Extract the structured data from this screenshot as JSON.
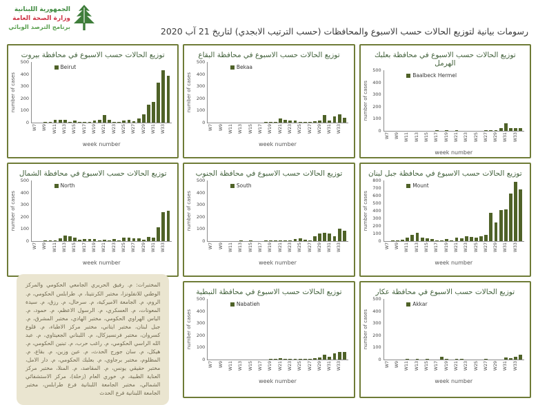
{
  "header": {
    "org_line1": "الجمهورية اللبنانية",
    "org_line2": "وزارة الصحة العامة",
    "org_line3": "برنامج الترصد الوبائي",
    "title": "رسومات بيانية لتوزيع الحالات حسب الاسبوع  والمحافظات (حسب الترتيب الابجدي) لتاريخ  21 آب  2020"
  },
  "colors": {
    "bar": "#4f6228",
    "panel_border": "#6e7b36",
    "chart_title_text": "#41603a",
    "org_green": "#3f8a3f",
    "org_red": "#cf3345",
    "labs_box_bg": "#eae5d0"
  },
  "labs_note": "المختبرات: م. رفيق الحريري الجامعي الحكومي والمركز الوطني للانفلونزا، مختبر الكرنتينا، م. طرابلس الحكومي، م. الروم، م. الجامعة الاميركية، م. سرحال، م. رزق، م. سيدة المعونات، م. العسكري، م. الرسول الاعظم، م. حمود، م. الياس الهراوي الحكومي، مختبر الهادي، مختبر المشرق، م. جبل لبنان، مختبر ايتاني، مختبر مركز الاطباء، م. قلوع كسروان، مختبر فرنسيزكال، م. اللبناني الجعيتاوي، م. عبد الله الراسي الحكومي، م. راغب حرب، م. تبنين الحكومي، م. هيكل، م. سان جورج الحدث، م. عين وزين، م. بقاع، م. المظلوم، مختبر برجاوي، م. بعلبك الحكومي، م. دار الامل، مختبر حقيقي يونس، م. المقاصد، م. المنلا، مختبر مركز العناية الطبية، م. خوري العام (زحلة)، مركز الاستشفائي الشمالي، مختبر الجامعة اللبنانية فرع طرابلس، مختبر الجامعة اللبنانية فرع الحدث",
  "chart_data": {
    "type": "bar",
    "shared": {
      "categories": [
        "W7",
        "W8",
        "W9",
        "W10",
        "W11",
        "W12",
        "W13",
        "W14",
        "W15",
        "W16",
        "W17",
        "W18",
        "W19",
        "W20",
        "W21",
        "W22",
        "W23",
        "W24",
        "W25",
        "W26",
        "W27",
        "W28",
        "W29",
        "W30",
        "W31",
        "W32",
        "W33",
        "W34"
      ],
      "xtick_every": 2,
      "xlabel": "week number",
      "ylabel": "number of cases",
      "bar_color": "#4f6228",
      "grid": false,
      "legend_position": "top-left-inside"
    },
    "charts": [
      {
        "title": "توزيع الحالات حسب الاسبوع  في محافظة بيروت",
        "legend": "Beirut",
        "ylim": [
          0,
          500
        ],
        "ytick_step": 100,
        "values": [
          0,
          0,
          2,
          8,
          25,
          25,
          25,
          5,
          15,
          3,
          2,
          3,
          15,
          25,
          65,
          20,
          3,
          5,
          15,
          20,
          10,
          35,
          70,
          150,
          170,
          330,
          430,
          385
        ]
      },
      {
        "title": "توزيع الحالات حسب الاسبوع  في محافظة البقاع",
        "legend": "Bekaa",
        "ylim": [
          0,
          500
        ],
        "ytick_step": 100,
        "values": [
          0,
          0,
          0,
          0,
          0,
          0,
          0,
          0,
          0,
          0,
          0,
          2,
          5,
          8,
          35,
          25,
          18,
          18,
          2,
          3,
          8,
          10,
          15,
          60,
          15,
          50,
          70,
          40
        ]
      },
      {
        "title": "توزيع الحالات حسب الاسبوع  في محافظة بعلبك الهرمل",
        "legend": "Baalbeck Hermel",
        "ylim": [
          0,
          500
        ],
        "ytick_step": 100,
        "values": [
          0,
          0,
          0,
          0,
          0,
          0,
          0,
          0,
          0,
          0,
          2,
          0,
          2,
          0,
          2,
          0,
          0,
          0,
          0,
          0,
          2,
          2,
          8,
          20,
          60,
          25,
          22,
          25
        ]
      },
      {
        "title": "توزيع الحالات حسب الاسبوع  في محافظة الشمال",
        "legend": "North",
        "ylim": [
          0,
          500
        ],
        "ytick_step": 100,
        "values": [
          0,
          0,
          2,
          5,
          8,
          25,
          45,
          40,
          30,
          10,
          15,
          15,
          15,
          8,
          10,
          8,
          15,
          3,
          30,
          30,
          20,
          25,
          10,
          35,
          30,
          115,
          240,
          250
        ]
      },
      {
        "title": "توزيع الحالات حسب الاسبوع  في محافظة الجنوب",
        "legend": "South",
        "ylim": [
          0,
          500
        ],
        "ytick_step": 100,
        "values": [
          0,
          0,
          0,
          0,
          0,
          0,
          2,
          0,
          3,
          0,
          0,
          2,
          3,
          5,
          5,
          8,
          5,
          15,
          25,
          10,
          5,
          40,
          60,
          70,
          60,
          40,
          105,
          85
        ]
      },
      {
        "title": "توزيع الحالات حسب الاسبوع  في محافظة جبل لبنان",
        "legend": "Mount",
        "ylim": [
          0,
          800
        ],
        "ytick_step": 100,
        "values": [
          0,
          2,
          5,
          15,
          45,
          85,
          105,
          50,
          35,
          25,
          5,
          8,
          30,
          10,
          45,
          40,
          65,
          55,
          50,
          60,
          85,
          370,
          245,
          405,
          420,
          630,
          785,
          680
        ]
      },
      {
        "title": "توزيع الحالات حسب الاسبوع  في محافظة النبطية",
        "legend": "Nabatieh",
        "ylim": [
          0,
          500
        ],
        "ytick_step": 100,
        "values": [
          0,
          0,
          0,
          0,
          0,
          0,
          0,
          0,
          0,
          0,
          0,
          0,
          5,
          3,
          10,
          8,
          2,
          2,
          2,
          3,
          5,
          12,
          15,
          40,
          25,
          50,
          65,
          60
        ]
      },
      {
        "title": "توزيع الحالات حسب الاسبوع  في محافظة عكار",
        "legend": "Akkar",
        "ylim": [
          0,
          500
        ],
        "ytick_step": 100,
        "values": [
          0,
          0,
          0,
          0,
          2,
          0,
          3,
          0,
          3,
          0,
          0,
          20,
          2,
          0,
          8,
          2,
          0,
          0,
          0,
          0,
          3,
          0,
          0,
          0,
          15,
          10,
          25,
          40
        ]
      }
    ]
  }
}
